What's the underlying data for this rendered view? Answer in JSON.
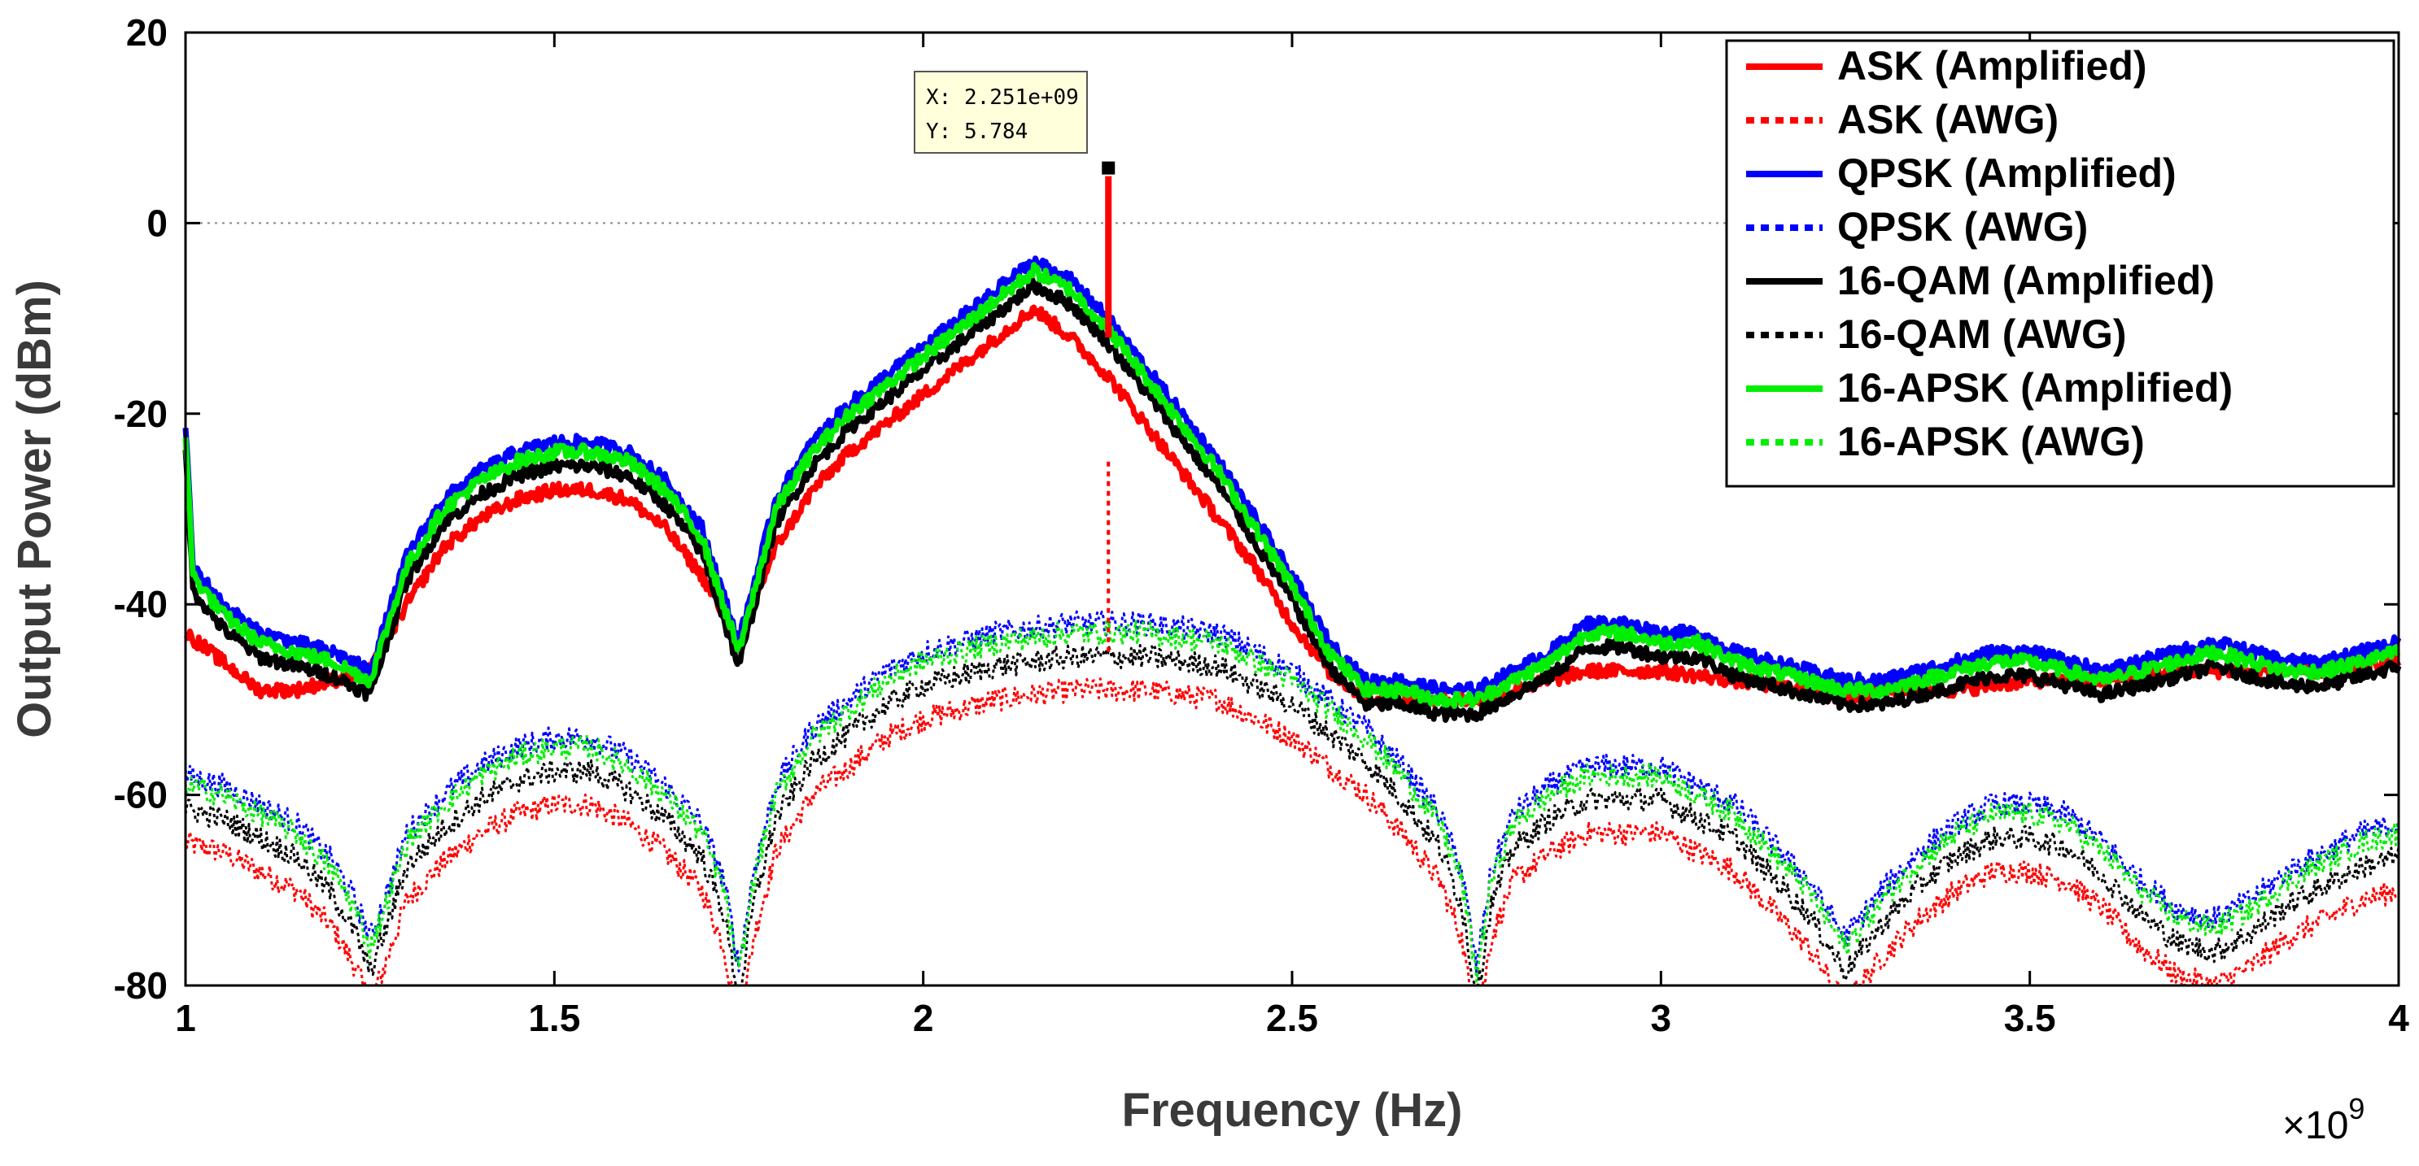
{
  "chart_data": {
    "type": "line",
    "title": "",
    "xlabel": "Frequency (Hz)",
    "ylabel": "Output Power (dBm)",
    "x_exponent_label": "×10",
    "x_exponent_power": "9",
    "xlim": [
      1.0,
      4.0
    ],
    "ylim": [
      -80,
      20
    ],
    "x_ticks": [
      1,
      1.5,
      2,
      2.5,
      3,
      3.5,
      4
    ],
    "x_tick_labels": [
      "1",
      "1.5",
      "2",
      "2.5",
      "3",
      "3.5",
      "4"
    ],
    "y_ticks": [
      20,
      0,
      -20,
      -40,
      -60,
      -80
    ],
    "y_tick_labels": [
      "20",
      "0",
      "-20",
      "-40",
      "-60",
      "-80"
    ],
    "gridline_y": 0,
    "legend_position": "top-right",
    "series": [
      {
        "name": "ASK (Amplified)",
        "color": "#ff0000",
        "dash": "solid",
        "offset": -3.0,
        "key": [
          [
            1.0,
            -43
          ],
          [
            1.05,
            -46
          ],
          [
            1.1,
            -49
          ],
          [
            1.15,
            -49
          ],
          [
            1.2,
            -48
          ],
          [
            1.25,
            -47
          ],
          [
            1.3,
            -40
          ],
          [
            1.35,
            -34
          ],
          [
            1.4,
            -31
          ],
          [
            1.45,
            -29
          ],
          [
            1.5,
            -28
          ],
          [
            1.55,
            -28
          ],
          [
            1.6,
            -29
          ],
          [
            1.65,
            -32
          ],
          [
            1.7,
            -37
          ],
          [
            1.75,
            -44
          ],
          [
            1.8,
            -34
          ],
          [
            1.85,
            -28
          ],
          [
            1.9,
            -24
          ],
          [
            1.95,
            -21
          ],
          [
            2.0,
            -18
          ],
          [
            2.05,
            -15
          ],
          [
            2.1,
            -12
          ],
          [
            2.15,
            -9
          ],
          [
            2.2,
            -12
          ],
          [
            2.25,
            -16
          ],
          [
            2.3,
            -21
          ],
          [
            2.35,
            -26
          ],
          [
            2.4,
            -31
          ],
          [
            2.45,
            -36
          ],
          [
            2.5,
            -42
          ],
          [
            2.55,
            -47
          ],
          [
            2.6,
            -50
          ],
          [
            2.7,
            -50
          ],
          [
            2.75,
            -50
          ],
          [
            2.8,
            -49
          ],
          [
            2.9,
            -47
          ],
          [
            3.0,
            -47
          ],
          [
            3.1,
            -48
          ],
          [
            3.2,
            -49
          ],
          [
            3.25,
            -50
          ],
          [
            3.3,
            -49
          ],
          [
            3.4,
            -49
          ],
          [
            3.5,
            -48
          ],
          [
            3.6,
            -48
          ],
          [
            3.7,
            -47
          ],
          [
            3.8,
            -47
          ],
          [
            3.9,
            -47
          ],
          [
            4.0,
            -46
          ]
        ]
      },
      {
        "name": "ASK (AWG)",
        "color": "#ff0000",
        "dash": "dotted",
        "offset": -6.0,
        "spread": 2.5
      },
      {
        "name": "QPSK (Amplified)",
        "color": "#0000ff",
        "dash": "solid",
        "offset": 1.0
      },
      {
        "name": "QPSK (AWG)",
        "color": "#0000ff",
        "dash": "dotted",
        "offset": 1.0,
        "spread": 2.5
      },
      {
        "name": "16-QAM (Amplified)",
        "color": "#000000",
        "dash": "solid",
        "offset": -1.5
      },
      {
        "name": "16-QAM (AWG)",
        "color": "#000000",
        "dash": "dotted",
        "offset": -2.5,
        "spread": 2.5
      },
      {
        "name": "16-APSK (Amplified)",
        "color": "#00ee00",
        "dash": "solid",
        "offset": 0.0
      },
      {
        "name": "16-APSK (AWG)",
        "color": "#00ee00",
        "dash": "dotted",
        "offset": 0.0,
        "spread": 2.5
      }
    ],
    "base_amplified": [
      [
        1.0,
        -22
      ],
      [
        1.01,
        -37
      ],
      [
        1.05,
        -41
      ],
      [
        1.1,
        -44
      ],
      [
        1.15,
        -45
      ],
      [
        1.2,
        -46
      ],
      [
        1.25,
        -48
      ],
      [
        1.3,
        -36
      ],
      [
        1.35,
        -30
      ],
      [
        1.4,
        -27
      ],
      [
        1.45,
        -25
      ],
      [
        1.5,
        -24
      ],
      [
        1.55,
        -24
      ],
      [
        1.6,
        -25
      ],
      [
        1.65,
        -28
      ],
      [
        1.7,
        -33
      ],
      [
        1.75,
        -45
      ],
      [
        1.8,
        -30
      ],
      [
        1.85,
        -24
      ],
      [
        1.9,
        -20
      ],
      [
        1.95,
        -17
      ],
      [
        2.0,
        -14
      ],
      [
        2.05,
        -11
      ],
      [
        2.1,
        -8
      ],
      [
        2.15,
        -5
      ],
      [
        2.2,
        -7
      ],
      [
        2.25,
        -11
      ],
      [
        2.3,
        -16
      ],
      [
        2.35,
        -21
      ],
      [
        2.4,
        -26
      ],
      [
        2.45,
        -32
      ],
      [
        2.5,
        -38
      ],
      [
        2.55,
        -45
      ],
      [
        2.6,
        -49
      ],
      [
        2.65,
        -49
      ],
      [
        2.7,
        -50
      ],
      [
        2.75,
        -50
      ],
      [
        2.8,
        -48
      ],
      [
        2.85,
        -46
      ],
      [
        2.9,
        -43
      ],
      [
        2.95,
        -43
      ],
      [
        3.0,
        -44
      ],
      [
        3.05,
        -44
      ],
      [
        3.1,
        -46
      ],
      [
        3.15,
        -47
      ],
      [
        3.2,
        -48
      ],
      [
        3.25,
        -49
      ],
      [
        3.3,
        -49
      ],
      [
        3.35,
        -48
      ],
      [
        3.4,
        -47
      ],
      [
        3.45,
        -46
      ],
      [
        3.5,
        -46
      ],
      [
        3.55,
        -47
      ],
      [
        3.6,
        -48
      ],
      [
        3.65,
        -47
      ],
      [
        3.7,
        -46
      ],
      [
        3.75,
        -45
      ],
      [
        3.8,
        -46
      ],
      [
        3.85,
        -47
      ],
      [
        3.9,
        -47
      ],
      [
        3.95,
        -46
      ],
      [
        4.0,
        -45
      ]
    ],
    "base_awg": [
      [
        1.0,
        -59
      ],
      [
        1.05,
        -60
      ],
      [
        1.1,
        -62
      ],
      [
        1.15,
        -64
      ],
      [
        1.2,
        -68
      ],
      [
        1.23,
        -72
      ],
      [
        1.25,
        -76
      ],
      [
        1.27,
        -72
      ],
      [
        1.3,
        -65
      ],
      [
        1.35,
        -61
      ],
      [
        1.4,
        -58
      ],
      [
        1.45,
        -56
      ],
      [
        1.5,
        -55
      ],
      [
        1.55,
        -55
      ],
      [
        1.6,
        -57
      ],
      [
        1.65,
        -60
      ],
      [
        1.7,
        -64
      ],
      [
        1.73,
        -70
      ],
      [
        1.75,
        -79
      ],
      [
        1.77,
        -69
      ],
      [
        1.8,
        -60
      ],
      [
        1.85,
        -54
      ],
      [
        1.9,
        -51
      ],
      [
        1.95,
        -48
      ],
      [
        2.0,
        -46
      ],
      [
        2.1,
        -44
      ],
      [
        2.2,
        -43
      ],
      [
        2.3,
        -43
      ],
      [
        2.4,
        -44
      ],
      [
        2.45,
        -46
      ],
      [
        2.5,
        -48
      ],
      [
        2.55,
        -51
      ],
      [
        2.6,
        -54
      ],
      [
        2.65,
        -58
      ],
      [
        2.7,
        -63
      ],
      [
        2.73,
        -69
      ],
      [
        2.75,
        -79
      ],
      [
        2.77,
        -69
      ],
      [
        2.8,
        -63
      ],
      [
        2.85,
        -60
      ],
      [
        2.9,
        -58
      ],
      [
        2.95,
        -58
      ],
      [
        3.0,
        -58
      ],
      [
        3.05,
        -60
      ],
      [
        3.1,
        -62
      ],
      [
        3.15,
        -66
      ],
      [
        3.2,
        -70
      ],
      [
        3.25,
        -76
      ],
      [
        3.3,
        -71
      ],
      [
        3.35,
        -67
      ],
      [
        3.4,
        -64
      ],
      [
        3.45,
        -62
      ],
      [
        3.5,
        -62
      ],
      [
        3.55,
        -63
      ],
      [
        3.6,
        -66
      ],
      [
        3.65,
        -70
      ],
      [
        3.7,
        -73
      ],
      [
        3.75,
        -74
      ],
      [
        3.8,
        -72
      ],
      [
        3.85,
        -69
      ],
      [
        3.9,
        -67
      ],
      [
        3.95,
        -65
      ],
      [
        4.0,
        -64
      ]
    ],
    "spikes": [
      {
        "series": "ASK (Amplified)",
        "x": 2.251,
        "y_from": -12,
        "y_to": 5.784
      },
      {
        "series": "ASK (AWG)",
        "x": 2.251,
        "y_from": -45,
        "y_to": -25
      }
    ],
    "datatip": {
      "x_label": "X: 2.251e+09",
      "y_label": "Y: 5.784",
      "x": 2.251,
      "y": 5.784
    }
  }
}
